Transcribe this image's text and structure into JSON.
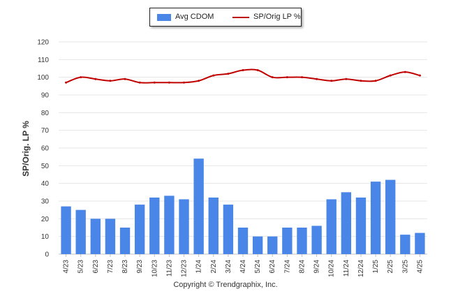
{
  "legend": {
    "bar_label": "Avg CDOM",
    "line_label": "SP/Orig LP %"
  },
  "footer": {
    "copyright": "Copyright © Trendgraphix, Inc."
  },
  "colors": {
    "bar": "#4a86e8",
    "line": "#c00000",
    "grid": "#e6e6e6",
    "axis": "#c0c0c0"
  },
  "chart_data": {
    "type": "bar",
    "ylabel": "SP/Orig. LP %",
    "xlabel": "",
    "ylim": [
      0,
      120
    ],
    "yticks": [
      0,
      10,
      20,
      30,
      40,
      50,
      60,
      70,
      80,
      90,
      100,
      110,
      120
    ],
    "grid": true,
    "legend_position": "top-center",
    "categories": [
      "4/23",
      "5/23",
      "6/23",
      "7/23",
      "8/23",
      "9/23",
      "10/23",
      "11/23",
      "12/23",
      "1/24",
      "2/24",
      "3/24",
      "4/24",
      "5/24",
      "6/24",
      "7/24",
      "8/24",
      "9/24",
      "10/24",
      "11/24",
      "12/24",
      "1/25",
      "2/25",
      "3/25",
      "4/25"
    ],
    "series": [
      {
        "name": "Avg CDOM",
        "type": "bar",
        "values": [
          27,
          25,
          20,
          20,
          15,
          28,
          32,
          33,
          31,
          54,
          32,
          28,
          15,
          10,
          10,
          15,
          15,
          16,
          31,
          35,
          32,
          41,
          42,
          11,
          12
        ]
      },
      {
        "name": "SP/Orig LP %",
        "type": "line",
        "values": [
          97,
          100,
          99,
          98,
          99,
          97,
          97,
          97,
          97,
          98,
          101,
          102,
          104,
          104,
          100,
          100,
          100,
          99,
          98,
          99,
          98,
          98,
          101,
          103,
          101
        ]
      }
    ]
  }
}
